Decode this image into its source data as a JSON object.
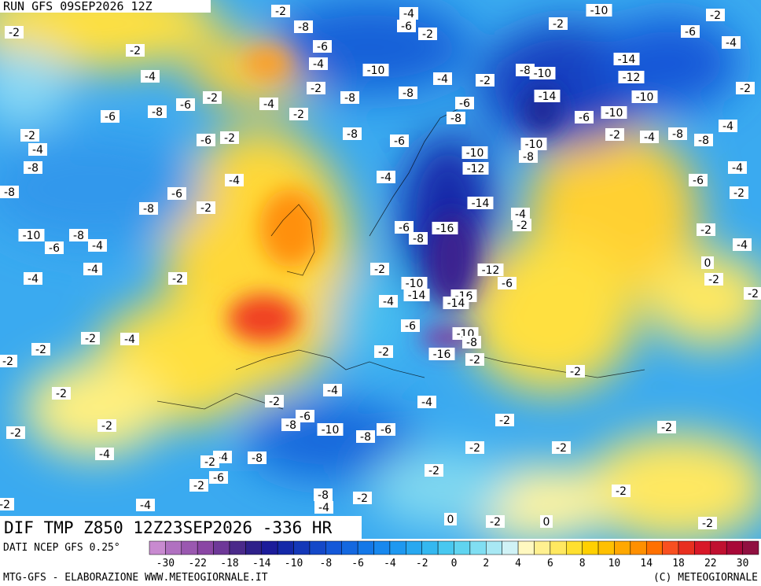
{
  "header": {
    "run": "RUN GFS 09SEP2026 12Z"
  },
  "map": {
    "contour_labels": [
      -2,
      -4,
      -10,
      -2,
      -2,
      -8,
      -6,
      -2,
      -2,
      -6,
      -4,
      -6,
      -2,
      -4,
      -14,
      -10,
      -8,
      -10,
      -12,
      -4,
      -4,
      -2,
      -2,
      -2,
      -8,
      -8,
      -14,
      -10,
      -6,
      -2,
      -4,
      -6,
      -8,
      -2,
      -6,
      -10,
      -6,
      -8,
      -8,
      -2,
      -6,
      -2,
      -2,
      -4,
      -8,
      -4,
      -6,
      -4,
      -10,
      -10,
      -8,
      -8,
      -8,
      -12,
      -4,
      -4,
      -4,
      -6,
      -6,
      -2,
      -8,
      -8,
      -14,
      -2,
      -4,
      -2,
      -6,
      -16,
      -8,
      -10,
      -8,
      -4,
      -6,
      -2,
      -4,
      -4,
      -4,
      -2,
      -2,
      -12,
      -6,
      -10,
      -14,
      -16,
      -14,
      -4,
      -2,
      0,
      -2,
      -6,
      -10,
      -8,
      -16,
      -2,
      -2,
      -4,
      -2,
      -2,
      -2,
      -2,
      -4,
      -2,
      -2,
      -4,
      -6,
      -8,
      -10,
      -8,
      -6,
      -2,
      -2,
      -2,
      -2,
      -2,
      -2,
      -4,
      -8,
      -4,
      -2,
      -2,
      -6,
      -2,
      -8,
      -4,
      -2,
      -2,
      -4,
      -2,
      0,
      -2,
      0,
      -2
    ]
  },
  "footer": {
    "product": "DIF TMP Z850 12Z23SEP2026 -336 HR",
    "source": "DATI NCEP GFS 0.25°",
    "credit": "MTG-GFS - ELABORAZIONE WWW.METEOGIORNALE.IT",
    "copyright": "(C) METEOGIORNALE"
  },
  "colorbar": {
    "ticks": [
      -30,
      -22,
      -18,
      -14,
      -10,
      -8,
      -6,
      -4,
      -2,
      0,
      2,
      4,
      6,
      8,
      10,
      14,
      18,
      22,
      30
    ],
    "colors": [
      "#c88ad0",
      "#b070c0",
      "#9a58b0",
      "#8a46a4",
      "#6e3898",
      "#4a2a8a",
      "#2e208a",
      "#1c1c9a",
      "#1428a8",
      "#1438b8",
      "#1448c8",
      "#1458d8",
      "#1468e0",
      "#1478e8",
      "#1888ee",
      "#1e98f0",
      "#28a8f0",
      "#34b8f0",
      "#48c8f0",
      "#60d4f0",
      "#80def2",
      "#a8e8f4",
      "#d0f2f6",
      "#fff8c0",
      "#fff090",
      "#ffe860",
      "#ffe030",
      "#ffd000",
      "#ffc000",
      "#ffa800",
      "#ff9000",
      "#ff7000",
      "#f85020",
      "#e83020",
      "#d81828",
      "#c01030",
      "#a80838",
      "#901040"
    ]
  }
}
